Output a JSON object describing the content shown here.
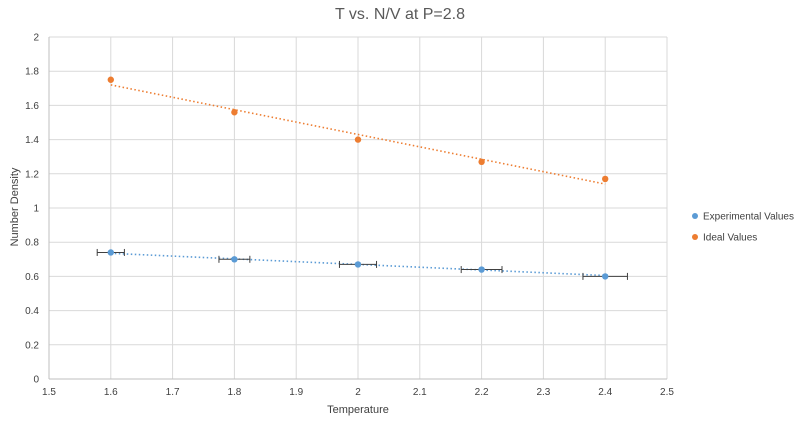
{
  "chart_data": {
    "type": "scatter",
    "title": "T vs. N/V at P=2.8",
    "xlabel": "Temperature",
    "ylabel": "Number Density",
    "xlim": [
      1.5,
      2.5
    ],
    "ylim": [
      0,
      2
    ],
    "x_ticks": [
      "1.5",
      "1.6",
      "1.7",
      "1.8",
      "1.9",
      "2",
      "2.1",
      "2.2",
      "2.3",
      "2.4",
      "2.5"
    ],
    "y_ticks": [
      "0",
      "0.2",
      "0.4",
      "0.6",
      "0.8",
      "1",
      "1.2",
      "1.4",
      "1.6",
      "1.8",
      "2"
    ],
    "grid": "vertical and horizontal",
    "legend_position": "right",
    "series": [
      {
        "name": "Experimental Values",
        "color": "#5b9bd5",
        "x": [
          1.6,
          1.8,
          2.0,
          2.2,
          2.4
        ],
        "y": [
          0.74,
          0.7,
          0.67,
          0.64,
          0.6
        ],
        "x_error": [
          0.022,
          0.025,
          0.03,
          0.033,
          0.036
        ],
        "trendline": {
          "type": "linear",
          "style": "dotted",
          "from": [
            1.6,
            0.735
          ],
          "to": [
            2.4,
            0.605
          ]
        }
      },
      {
        "name": "Ideal Values",
        "color": "#ed7d31",
        "x": [
          1.6,
          1.8,
          2.0,
          2.2,
          2.4
        ],
        "y": [
          1.75,
          1.56,
          1.4,
          1.27,
          1.17
        ],
        "trendline": {
          "type": "linear",
          "style": "dotted",
          "from": [
            1.6,
            1.72
          ],
          "to": [
            2.4,
            1.14
          ]
        }
      }
    ]
  }
}
